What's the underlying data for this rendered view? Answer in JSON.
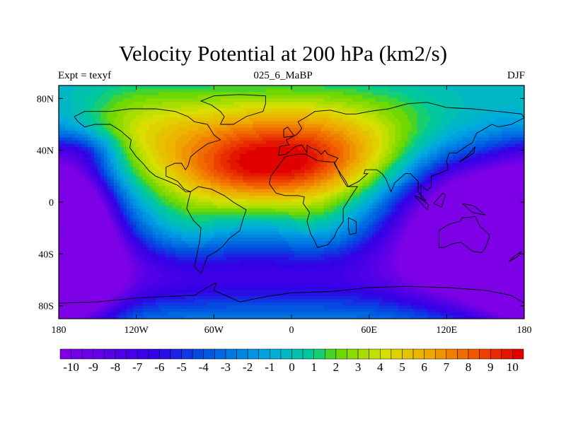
{
  "title": "Velocity Potential at 200 hPa (km2/s)",
  "subtitle_left": "Expt = texyf",
  "subtitle_center": "025_6_MaBP",
  "subtitle_right": "DJF",
  "chart_data": {
    "type": "heatmap",
    "projection": "cylindrical equidistant",
    "variable": "Velocity Potential at 200 hPa",
    "units": "km2/s",
    "xlim": [
      -180,
      180
    ],
    "ylim": [
      -90,
      90
    ],
    "x_ticks": [
      {
        "value": -180,
        "label": "180"
      },
      {
        "value": -120,
        "label": "120W"
      },
      {
        "value": -60,
        "label": "60W"
      },
      {
        "value": 0,
        "label": "0"
      },
      {
        "value": 60,
        "label": "60E"
      },
      {
        "value": 120,
        "label": "120E"
      },
      {
        "value": 180,
        "label": "180"
      }
    ],
    "y_ticks": [
      {
        "value": 80,
        "label": "80N"
      },
      {
        "value": 40,
        "label": "40N"
      },
      {
        "value": 0,
        "label": "0"
      },
      {
        "value": -40,
        "label": "40S"
      },
      {
        "value": -80,
        "label": "80S"
      }
    ],
    "colorbar": {
      "min": -10.5,
      "max": 10.5,
      "step": 0.5,
      "labels": [
        -10,
        -9,
        -8,
        -7,
        -6,
        -5,
        -4,
        -3,
        -2,
        -1,
        0,
        1,
        2,
        3,
        4,
        5,
        6,
        7,
        8,
        9,
        10
      ]
    },
    "field_features": [
      {
        "type": "max",
        "lon": -45,
        "lat": 20,
        "value": 9.8
      },
      {
        "type": "max",
        "lon": 10,
        "lat": 28,
        "value": 10
      },
      {
        "type": "max",
        "lon": -5,
        "lat": 60,
        "value": 6.5
      },
      {
        "type": "min",
        "lon": 140,
        "lat": -15,
        "value": -10
      },
      {
        "type": "min",
        "lon": -172,
        "lat": -30,
        "value": -10
      }
    ]
  }
}
